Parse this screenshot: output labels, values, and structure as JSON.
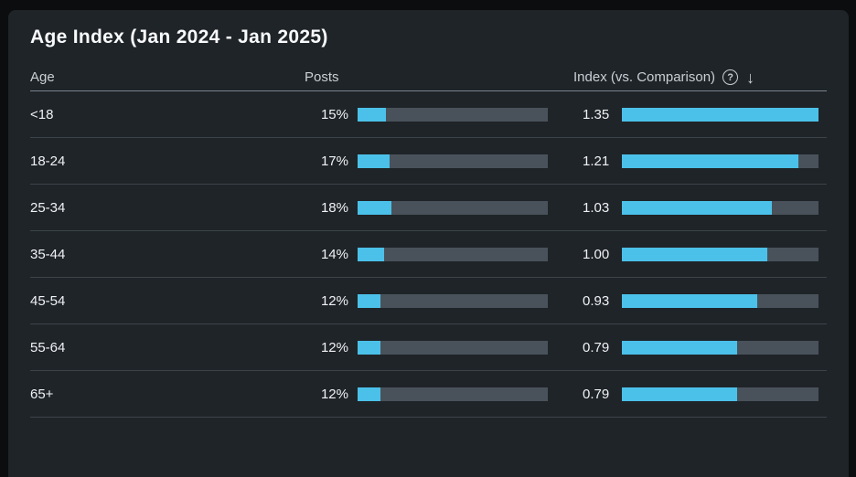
{
  "title": "Age Index (Jan 2024 - Jan 2025)",
  "columns": {
    "age": "Age",
    "posts": "Posts",
    "index": "Index (vs. Comparison)"
  },
  "header_icons": {
    "help": "?",
    "sort_desc": "↓"
  },
  "colors": {
    "accent": "#4BC1E9",
    "bar_track": "#49525A",
    "panel_bg": "#1F2428",
    "outer_bg": "#0B0D0E"
  },
  "posts_scale_max": 100,
  "index_scale_max": 1.35,
  "rows": [
    {
      "age": "<18",
      "posts_label": "15%",
      "posts_value": 15,
      "index_label": "1.35",
      "index_value": 1.35
    },
    {
      "age": "18-24",
      "posts_label": "17%",
      "posts_value": 17,
      "index_label": "1.21",
      "index_value": 1.21
    },
    {
      "age": "25-34",
      "posts_label": "18%",
      "posts_value": 18,
      "index_label": "1.03",
      "index_value": 1.03
    },
    {
      "age": "35-44",
      "posts_label": "14%",
      "posts_value": 14,
      "index_label": "1.00",
      "index_value": 1.0
    },
    {
      "age": "45-54",
      "posts_label": "12%",
      "posts_value": 12,
      "index_label": "0.93",
      "index_value": 0.93
    },
    {
      "age": "55-64",
      "posts_label": "12%",
      "posts_value": 12,
      "index_label": "0.79",
      "index_value": 0.79
    },
    {
      "age": "65+",
      "posts_label": "12%",
      "posts_value": 12,
      "index_label": "0.79",
      "index_value": 0.79
    }
  ],
  "chart_data": {
    "type": "table",
    "title": "Age Index (Jan 2024 - Jan 2025)",
    "columns": [
      "Age",
      "Posts",
      "Index (vs. Comparison)"
    ],
    "categories": [
      "<18",
      "18-24",
      "25-34",
      "35-44",
      "45-54",
      "55-64",
      "65+"
    ],
    "series": [
      {
        "name": "Posts",
        "unit": "%",
        "values": [
          15,
          17,
          18,
          14,
          12,
          12,
          12
        ],
        "bar_scale_max": 100
      },
      {
        "name": "Index (vs. Comparison)",
        "values": [
          1.35,
          1.21,
          1.03,
          1.0,
          0.93,
          0.79,
          0.79
        ],
        "bar_scale_max": 1.35
      }
    ],
    "layout_hints": {
      "bar_color": "#4BC1E9",
      "track_color": "#49525A",
      "sort": "index descending"
    }
  }
}
